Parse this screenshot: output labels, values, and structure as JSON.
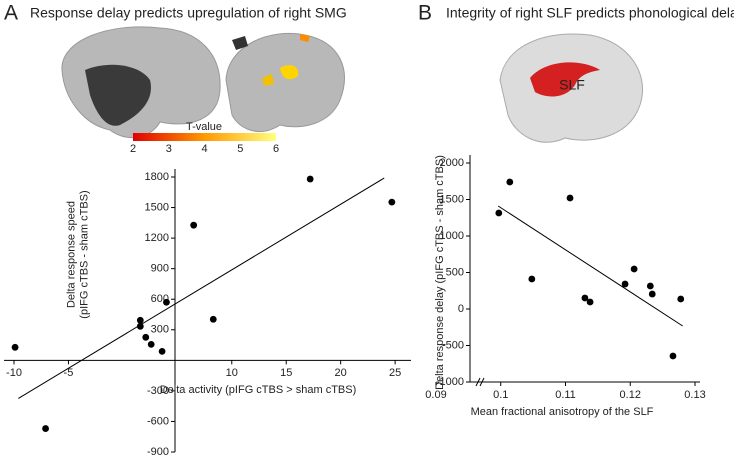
{
  "panels": [
    {
      "letter": "A",
      "title": "Response delay predicts upregulation of right SMG",
      "colorbar": {
        "label": "T-value",
        "ticks": [
          2,
          3,
          4,
          5,
          6
        ]
      }
    },
    {
      "letter": "B",
      "title": "Integrity of right SLF predicts phonological delay",
      "tract_label": "SLF"
    }
  ],
  "chart_data": [
    {
      "type": "scatter",
      "xlabel": "Delta activity (pIFG cTBS > sham cTBS)",
      "ylabel": [
        "Delta response speed",
        "(pIFG cTBS - sham cTBS)"
      ],
      "x": [
        -9.9,
        -7.1,
        1.6,
        1.6,
        2.1,
        2.6,
        3.6,
        4.0,
        6.5,
        8.3,
        17.2,
        24.7
      ],
      "values": [
        128,
        -670,
        393,
        334,
        226,
        157,
        88,
        570,
        1327,
        403,
        1780,
        1553
      ],
      "trend": {
        "x": [
          -9.6,
          24
        ],
        "y": [
          -374,
          1790
        ]
      },
      "color": "#000000",
      "xlim": [
        -10,
        26
      ],
      "ylim": [
        -900,
        1800
      ],
      "xticks": [
        -10,
        -5,
        10,
        15,
        20,
        25
      ],
      "yticks": [
        1800,
        1500,
        1200,
        900,
        600,
        300,
        -300,
        -600,
        -900
      ]
    },
    {
      "type": "scatter",
      "xlabel": "Mean fractional anisotropy of the SLF",
      "ylabel": [
        "Delta response delay (pIFG cTBS - sham cTBS)"
      ],
      "x": [
        0.0997,
        0.1014,
        0.1048,
        0.1107,
        0.113,
        0.1138,
        0.1192,
        0.1206,
        0.1231,
        0.1234,
        0.1278,
        0.1266
      ],
      "values": [
        1315,
        1740,
        411,
        1521,
        151,
        96,
        342,
        548,
        315,
        205,
        137,
        -644
      ],
      "trend": {
        "x": [
          0.0996,
          0.1281
        ],
        "y": [
          1411,
          -233
        ]
      },
      "color": "#000000",
      "xlim": [
        0.09,
        0.13
      ],
      "ylim": [
        -1000,
        2000
      ],
      "xticks": [
        0.09,
        0.1,
        0.11,
        0.12,
        0.13
      ],
      "yticks": [
        2000,
        1500,
        1000,
        500,
        0,
        -500,
        -1000
      ]
    }
  ]
}
